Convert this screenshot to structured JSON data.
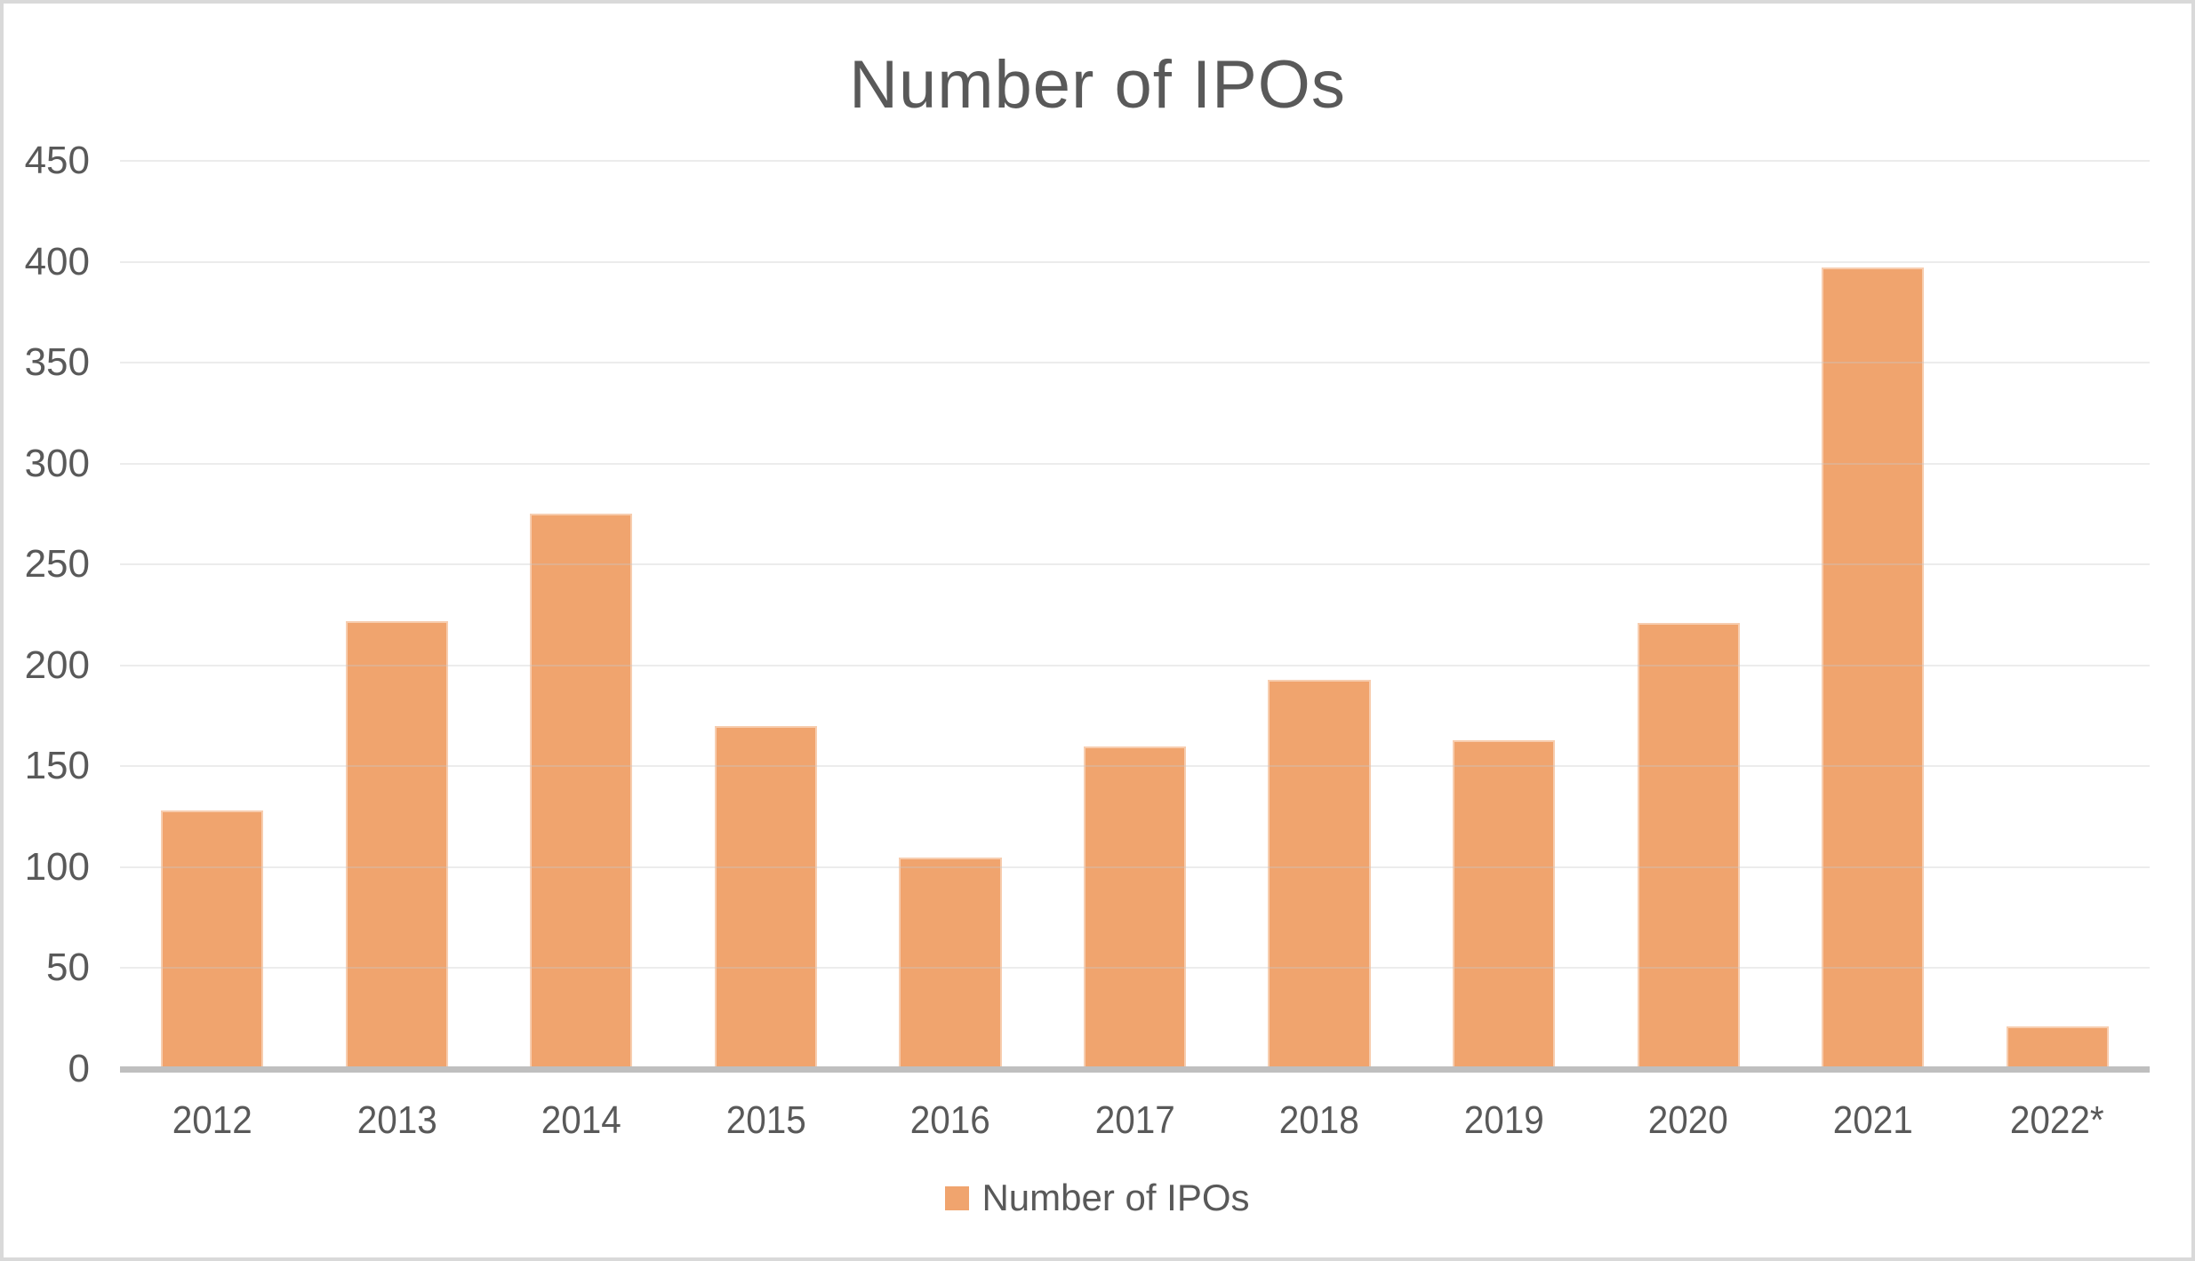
{
  "chart_data": {
    "type": "bar",
    "title": "Number of IPOs",
    "series_name": "Number of IPOs",
    "categories": [
      "2012",
      "2013",
      "2014",
      "2015",
      "2016",
      "2017",
      "2018",
      "2019",
      "2020",
      "2021",
      "2022*"
    ],
    "values": [
      128,
      222,
      275,
      170,
      105,
      160,
      193,
      163,
      221,
      397,
      21
    ],
    "ylim": [
      0,
      450
    ],
    "ytick_step": 50,
    "ytick_labels": [
      "0",
      "50",
      "100",
      "150",
      "200",
      "250",
      "300",
      "350",
      "400",
      "450"
    ],
    "grid": true,
    "legend_position": "bottom"
  },
  "colors": {
    "bar": "#F0A46E",
    "axis_line": "#BFBFBF",
    "gridline": "rgba(200,200,200,0.35)",
    "text": "#595959",
    "frame": "#D9D9D9",
    "background": "#FFFFFF"
  }
}
